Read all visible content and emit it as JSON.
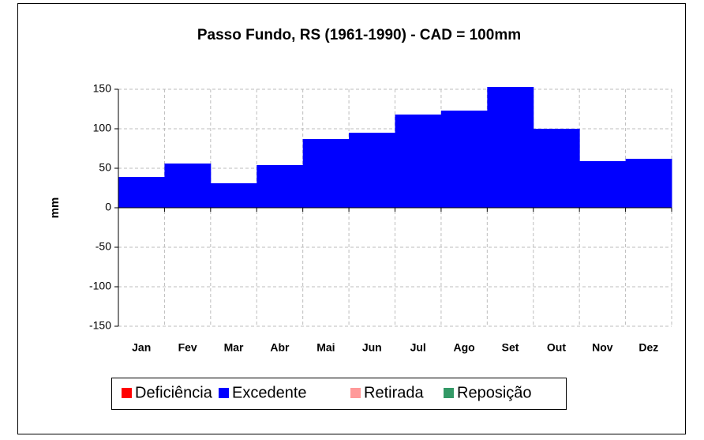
{
  "chart_data": {
    "type": "bar",
    "title": "Passo Fundo, RS (1961-1990) - CAD = 100mm",
    "y_label": "mm",
    "categories": [
      "Jan",
      "Fev",
      "Mar",
      "Abr",
      "Mai",
      "Jun",
      "Jul",
      "Ago",
      "Set",
      "Out",
      "Nov",
      "Dez"
    ],
    "series": [
      {
        "name": "Deficiência",
        "color": "#ff0000"
      },
      {
        "name": "Excedente",
        "color": "#0000ff",
        "values": [
          39,
          56,
          31,
          54,
          87,
          95,
          118,
          123,
          153,
          100,
          59,
          62
        ]
      },
      {
        "name": "Retirada",
        "color": "#ff9999"
      },
      {
        "name": "Reposição",
        "color": "#339966"
      }
    ],
    "ylim": [
      -150,
      150
    ],
    "yticks": [
      -150,
      -100,
      -50,
      0,
      50,
      100,
      150
    ],
    "grid": true
  }
}
